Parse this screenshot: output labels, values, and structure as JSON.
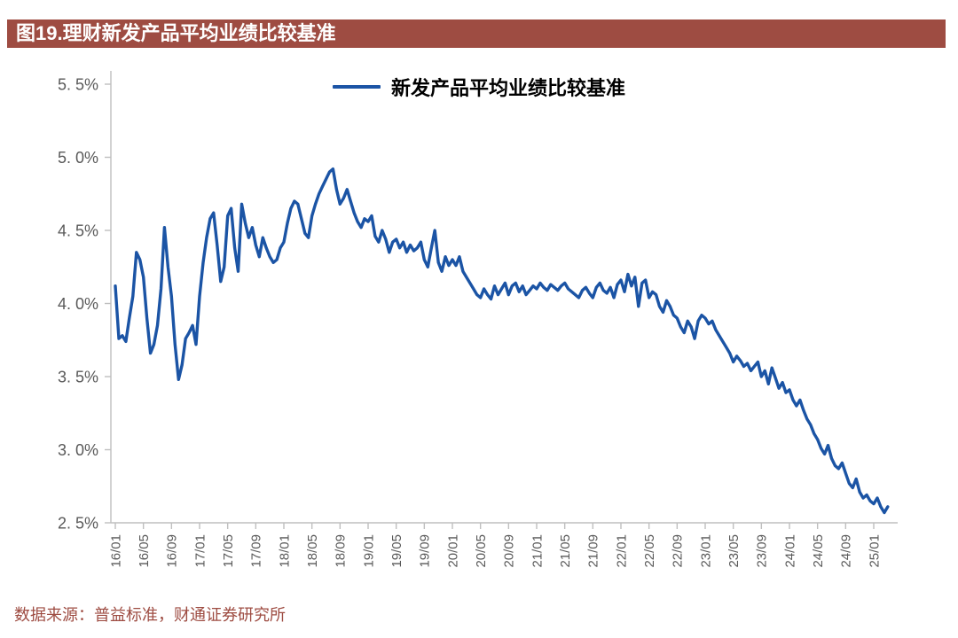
{
  "header": {
    "title": "图19.理财新发产品平均业绩比较基准"
  },
  "legend": {
    "label": "新发产品平均业绩比较基准"
  },
  "footer": {
    "source": "数据来源：普益标准，财通证券研究所"
  },
  "colors": {
    "accent_red": "#9E4C42",
    "line_blue": "#1B54A5",
    "axis_gray": "#BFBFBF",
    "tick_text": "#595959"
  },
  "chart_data": {
    "type": "line",
    "title": "图19.理财新发产品平均业绩比较基准",
    "series_name": "新发产品平均业绩比较基准",
    "ylabel": "",
    "xlabel": "",
    "ylim": [
      2.5,
      5.5
    ],
    "grid": false,
    "legend_position": "top-center",
    "y_ticks": [
      5.5,
      5.0,
      4.5,
      4.0,
      3.5,
      3.0,
      2.5
    ],
    "y_tick_labels": [
      "5. 5%",
      "5. 0%",
      "4. 5%",
      "4. 0%",
      "3. 5%",
      "3. 0%",
      "2. 5%"
    ],
    "x_tick_labels": [
      "16/01",
      "16/05",
      "16/09",
      "17/01",
      "17/05",
      "17/09",
      "18/01",
      "18/05",
      "18/09",
      "19/01",
      "19/05",
      "19/09",
      "20/01",
      "20/05",
      "20/09",
      "21/01",
      "21/05",
      "21/09",
      "22/01",
      "22/05",
      "22/09",
      "23/01",
      "23/05",
      "23/09",
      "24/01",
      "24/05",
      "24/09",
      "25/01"
    ],
    "points_per_tick": 8,
    "x_range_note": "semi-monthly points from 16/01 to 25/03",
    "line_color": "#1B54A5",
    "values": [
      4.12,
      3.76,
      3.78,
      3.74,
      3.9,
      4.05,
      4.35,
      4.3,
      4.18,
      3.9,
      3.66,
      3.72,
      3.85,
      4.1,
      4.52,
      4.25,
      4.05,
      3.72,
      3.48,
      3.58,
      3.76,
      3.8,
      3.85,
      3.72,
      4.05,
      4.28,
      4.45,
      4.58,
      4.62,
      4.4,
      4.15,
      4.25,
      4.6,
      4.65,
      4.38,
      4.22,
      4.68,
      4.55,
      4.45,
      4.52,
      4.4,
      4.32,
      4.45,
      4.38,
      4.32,
      4.28,
      4.3,
      4.38,
      4.42,
      4.55,
      4.65,
      4.7,
      4.68,
      4.58,
      4.48,
      4.45,
      4.6,
      4.68,
      4.75,
      4.8,
      4.85,
      4.9,
      4.92,
      4.78,
      4.68,
      4.72,
      4.78,
      4.7,
      4.62,
      4.56,
      4.52,
      4.58,
      4.56,
      4.6,
      4.46,
      4.42,
      4.5,
      4.44,
      4.35,
      4.42,
      4.44,
      4.38,
      4.42,
      4.35,
      4.4,
      4.36,
      4.38,
      4.42,
      4.3,
      4.25,
      4.38,
      4.5,
      4.28,
      4.22,
      4.32,
      4.26,
      4.3,
      4.26,
      4.32,
      4.22,
      4.18,
      4.14,
      4.1,
      4.06,
      4.04,
      4.1,
      4.06,
      4.03,
      4.12,
      4.06,
      4.1,
      4.14,
      4.06,
      4.12,
      4.14,
      4.08,
      4.12,
      4.06,
      4.09,
      4.12,
      4.1,
      4.14,
      4.11,
      4.09,
      4.13,
      4.11,
      4.09,
      4.12,
      4.14,
      4.1,
      4.08,
      4.06,
      4.04,
      4.09,
      4.11,
      4.07,
      4.04,
      4.11,
      4.14,
      4.09,
      4.07,
      4.11,
      4.04,
      4.13,
      4.16,
      4.08,
      4.2,
      4.12,
      4.18,
      3.98,
      4.14,
      4.16,
      4.04,
      4.08,
      4.06,
      3.98,
      3.94,
      4.02,
      3.98,
      3.92,
      3.9,
      3.84,
      3.8,
      3.88,
      3.84,
      3.76,
      3.88,
      3.92,
      3.9,
      3.86,
      3.88,
      3.82,
      3.78,
      3.74,
      3.7,
      3.66,
      3.6,
      3.64,
      3.61,
      3.57,
      3.59,
      3.54,
      3.57,
      3.6,
      3.5,
      3.54,
      3.45,
      3.56,
      3.49,
      3.42,
      3.46,
      3.39,
      3.41,
      3.34,
      3.3,
      3.34,
      3.27,
      3.21,
      3.17,
      3.11,
      3.07,
      3.01,
      2.97,
      3.03,
      2.94,
      2.89,
      2.87,
      2.91,
      2.84,
      2.77,
      2.74,
      2.8,
      2.71,
      2.67,
      2.69,
      2.65,
      2.63,
      2.67,
      2.61,
      2.57,
      2.61
    ]
  }
}
